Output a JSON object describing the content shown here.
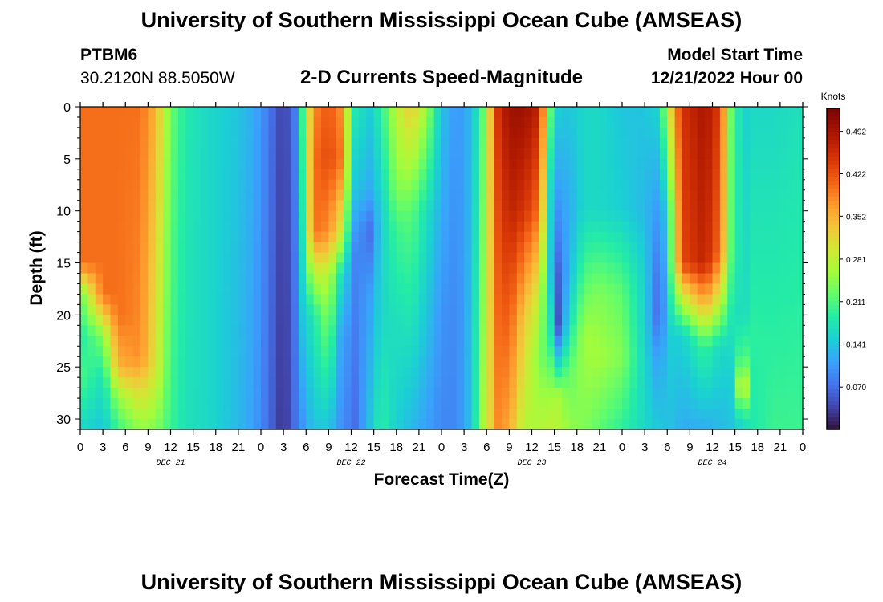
{
  "header": {
    "title": "University of Southern Mississippi Ocean Cube (AMSEAS)",
    "station": "PTBM6",
    "coordinates": "30.2120N  88.5050W",
    "subtitle": "2-D Currents Speed-Magnitude",
    "model_start_label": "Model Start Time",
    "model_start_time": "12/21/2022 Hour 00"
  },
  "footer": {
    "title": "University of Southern Mississippi Ocean Cube (AMSEAS)"
  },
  "chart_data": {
    "type": "heatmap",
    "title": "2-D Currents Speed-Magnitude",
    "xlabel": "Forecast Time(Z)",
    "ylabel": "Depth (ft)",
    "x_tick_labels": [
      "0",
      "3",
      "6",
      "9",
      "12",
      "15",
      "18",
      "21",
      "0",
      "3",
      "6",
      "9",
      "12",
      "15",
      "18",
      "21",
      "0",
      "3",
      "6",
      "9",
      "12",
      "15",
      "18",
      "21",
      "0",
      "3",
      "6",
      "9",
      "12",
      "15",
      "18",
      "21",
      "0"
    ],
    "x_hours_range": [
      0,
      96
    ],
    "date_labels": [
      {
        "label": "DEC 21",
        "hour": 12
      },
      {
        "label": "DEC 22",
        "hour": 36
      },
      {
        "label": "DEC 23",
        "hour": 60
      },
      {
        "label": "DEC 24",
        "hour": 84
      }
    ],
    "y_ticks": [
      0,
      5,
      10,
      15,
      20,
      25,
      30
    ],
    "ylim": [
      0,
      31
    ],
    "y_inverted": true,
    "colorbar": {
      "unit_label": "Knots",
      "tick_labels": [
        "0.492",
        "0.422",
        "0.352",
        "0.281",
        "0.211",
        "0.141",
        "0.070"
      ],
      "tick_values": [
        0.492,
        0.422,
        0.352,
        0.281,
        0.211,
        0.141,
        0.07
      ],
      "range": [
        0.0,
        0.53
      ]
    },
    "profiles": [
      {
        "hour": 0,
        "depths": [
          0,
          15,
          18,
          22,
          26,
          31
        ],
        "values": [
          0.4,
          0.4,
          0.22,
          0.18,
          0.21,
          0.16
        ]
      },
      {
        "hour": 3,
        "depths": [
          0,
          18,
          22,
          26,
          31
        ],
        "values": [
          0.4,
          0.4,
          0.24,
          0.17,
          0.14
        ]
      },
      {
        "hour": 5,
        "depths": [
          0,
          20,
          25,
          28,
          31
        ],
        "values": [
          0.4,
          0.4,
          0.35,
          0.25,
          0.2
        ]
      },
      {
        "hour": 8,
        "depths": [
          0,
          24,
          28,
          31
        ],
        "values": [
          0.4,
          0.38,
          0.3,
          0.25
        ]
      },
      {
        "hour": 10,
        "depths": [
          0,
          25,
          31
        ],
        "values": [
          0.35,
          0.3,
          0.24
        ]
      },
      {
        "hour": 12,
        "depths": [
          0,
          31
        ],
        "values": [
          0.23,
          0.2
        ]
      },
      {
        "hour": 14,
        "depths": [
          0,
          31
        ],
        "values": [
          0.18,
          0.17
        ]
      },
      {
        "hour": 17,
        "depths": [
          0,
          31
        ],
        "values": [
          0.16,
          0.16
        ]
      },
      {
        "hour": 21,
        "depths": [
          0,
          31
        ],
        "values": [
          0.14,
          0.13
        ]
      },
      {
        "hour": 23,
        "depths": [
          0,
          31
        ],
        "values": [
          0.12,
          0.11
        ]
      },
      {
        "hour": 25,
        "depths": [
          0,
          31
        ],
        "values": [
          0.08,
          0.07
        ]
      },
      {
        "hour": 27,
        "depths": [
          0,
          31
        ],
        "values": [
          0.03,
          0.02
        ]
      },
      {
        "hour": 28.5,
        "depths": [
          0,
          31
        ],
        "values": [
          0.08,
          0.07
        ]
      },
      {
        "hour": 29.5,
        "depths": [
          0,
          10,
          31
        ],
        "values": [
          0.2,
          0.18,
          0.1
        ]
      },
      {
        "hour": 31,
        "depths": [
          0,
          5,
          12,
          16,
          20,
          31
        ],
        "values": [
          0.38,
          0.4,
          0.4,
          0.28,
          0.18,
          0.14
        ]
      },
      {
        "hour": 33,
        "depths": [
          0,
          5,
          12,
          16,
          31
        ],
        "values": [
          0.42,
          0.43,
          0.38,
          0.28,
          0.14
        ]
      },
      {
        "hour": 34.5,
        "depths": [
          0,
          5,
          12,
          16,
          22,
          31
        ],
        "values": [
          0.38,
          0.4,
          0.3,
          0.18,
          0.12,
          0.1
        ]
      },
      {
        "hour": 36.5,
        "depths": [
          0,
          8,
          14,
          31
        ],
        "values": [
          0.18,
          0.14,
          0.09,
          0.07
        ]
      },
      {
        "hour": 38.5,
        "depths": [
          0,
          8,
          12,
          18,
          31
        ],
        "values": [
          0.15,
          0.12,
          0.07,
          0.11,
          0.14
        ]
      },
      {
        "hour": 40,
        "depths": [
          0,
          10,
          20,
          31
        ],
        "values": [
          0.19,
          0.15,
          0.16,
          0.19
        ]
      },
      {
        "hour": 42,
        "depths": [
          0,
          8,
          12,
          20,
          31
        ],
        "values": [
          0.28,
          0.24,
          0.2,
          0.17,
          0.15
        ]
      },
      {
        "hour": 44,
        "depths": [
          0,
          10,
          31
        ],
        "values": [
          0.33,
          0.22,
          0.13
        ]
      },
      {
        "hour": 46,
        "depths": [
          0,
          10,
          31
        ],
        "values": [
          0.26,
          0.17,
          0.11
        ]
      },
      {
        "hour": 48,
        "depths": [
          0,
          10,
          20,
          31
        ],
        "values": [
          0.14,
          0.12,
          0.1,
          0.09
        ]
      },
      {
        "hour": 50,
        "depths": [
          0,
          20,
          31
        ],
        "values": [
          0.1,
          0.09,
          0.09
        ]
      },
      {
        "hour": 52,
        "depths": [
          0,
          31
        ],
        "values": [
          0.13,
          0.14
        ]
      },
      {
        "hour": 53.5,
        "depths": [
          0,
          31
        ],
        "values": [
          0.22,
          0.26
        ]
      },
      {
        "hour": 55.5,
        "depths": [
          0,
          31
        ],
        "values": [
          0.45,
          0.38
        ]
      },
      {
        "hour": 57,
        "depths": [
          0,
          10,
          31
        ],
        "values": [
          0.5,
          0.47,
          0.36
        ]
      },
      {
        "hour": 59,
        "depths": [
          0,
          10,
          20,
          31
        ],
        "values": [
          0.5,
          0.45,
          0.33,
          0.27
        ]
      },
      {
        "hour": 61,
        "depths": [
          0,
          10,
          18,
          24,
          31
        ],
        "values": [
          0.47,
          0.4,
          0.29,
          0.24,
          0.27
        ]
      },
      {
        "hour": 62.5,
        "depths": [
          0,
          8,
          16,
          22,
          28,
          31
        ],
        "values": [
          0.22,
          0.16,
          0.14,
          0.18,
          0.26,
          0.28
        ]
      },
      {
        "hour": 63.5,
        "depths": [
          0,
          10,
          16,
          21,
          24,
          28,
          31
        ],
        "values": [
          0.15,
          0.1,
          0.06,
          0.05,
          0.14,
          0.27,
          0.27
        ]
      },
      {
        "hour": 65,
        "depths": [
          0,
          10,
          16,
          21,
          25,
          31
        ],
        "values": [
          0.14,
          0.12,
          0.13,
          0.17,
          0.22,
          0.25
        ]
      },
      {
        "hour": 67,
        "depths": [
          0,
          10,
          16,
          22,
          31
        ],
        "values": [
          0.16,
          0.16,
          0.21,
          0.26,
          0.24
        ]
      },
      {
        "hour": 69,
        "depths": [
          0,
          10,
          18,
          24,
          31
        ],
        "values": [
          0.16,
          0.16,
          0.24,
          0.26,
          0.22
        ]
      },
      {
        "hour": 72,
        "depths": [
          0,
          10,
          18,
          24,
          31
        ],
        "values": [
          0.14,
          0.15,
          0.22,
          0.24,
          0.19
        ]
      },
      {
        "hour": 75,
        "depths": [
          0,
          10,
          16,
          31
        ],
        "values": [
          0.14,
          0.13,
          0.15,
          0.16
        ]
      },
      {
        "hour": 77,
        "depths": [
          0,
          10,
          16,
          20,
          24,
          31
        ],
        "values": [
          0.16,
          0.1,
          0.06,
          0.05,
          0.1,
          0.14
        ]
      },
      {
        "hour": 78,
        "depths": [
          0,
          10,
          31
        ],
        "values": [
          0.28,
          0.16,
          0.14
        ]
      },
      {
        "hour": 80,
        "depths": [
          0,
          15,
          18,
          22,
          31
        ],
        "values": [
          0.45,
          0.43,
          0.3,
          0.15,
          0.12
        ]
      },
      {
        "hour": 83,
        "depths": [
          0,
          15,
          19,
          23,
          31
        ],
        "values": [
          0.49,
          0.47,
          0.35,
          0.2,
          0.12
        ]
      },
      {
        "hour": 85,
        "depths": [
          0,
          14,
          18,
          23,
          31
        ],
        "values": [
          0.44,
          0.4,
          0.3,
          0.16,
          0.13
        ]
      },
      {
        "hour": 86.5,
        "depths": [
          0,
          14,
          20,
          26,
          31
        ],
        "values": [
          0.23,
          0.22,
          0.18,
          0.15,
          0.14
        ]
      },
      {
        "hour": 88,
        "depths": [
          0,
          20,
          24,
          27,
          29,
          31
        ],
        "values": [
          0.15,
          0.16,
          0.22,
          0.32,
          0.22,
          0.15
        ]
      },
      {
        "hour": 89.5,
        "depths": [
          0,
          22,
          31
        ],
        "values": [
          0.16,
          0.19,
          0.18
        ]
      },
      {
        "hour": 92,
        "depths": [
          0,
          31
        ],
        "values": [
          0.16,
          0.2
        ]
      },
      {
        "hour": 96,
        "depths": [
          0,
          31
        ],
        "values": [
          0.17,
          0.2
        ]
      }
    ]
  }
}
